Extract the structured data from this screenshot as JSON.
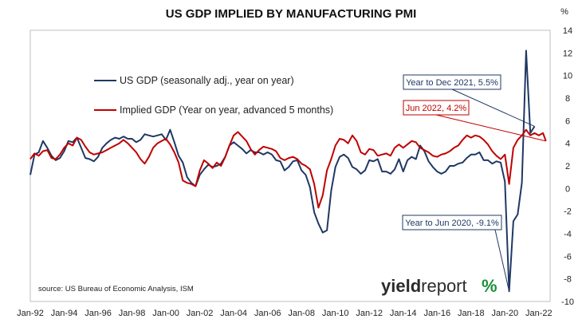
{
  "chart_data": {
    "type": "line",
    "title": "US GDP IMPLIED BY MANUFACTURING PMI",
    "y_unit_label": "%",
    "ylim": [
      -10,
      14
    ],
    "y_ticks": [
      14,
      12,
      10,
      8,
      6,
      4,
      2,
      0,
      -2,
      -4,
      -6,
      -8,
      -10
    ],
    "xlim": [
      "1992-01",
      "2022-09"
    ],
    "x_ticks": [
      "Jan-92",
      "Jan-94",
      "Jan-96",
      "Jan-98",
      "Jan-00",
      "Jan-02",
      "Jan-04",
      "Jan-06",
      "Jan-08",
      "Jan-10",
      "Jan-12",
      "Jan-14",
      "Jan-16",
      "Jan-18",
      "Jan-20",
      "Jan-22"
    ],
    "x_tick_dates": [
      "1992-01",
      "1994-01",
      "1996-01",
      "1998-01",
      "2000-01",
      "2002-01",
      "2004-01",
      "2006-01",
      "2008-01",
      "2010-01",
      "2012-01",
      "2014-01",
      "2016-01",
      "2018-01",
      "2020-01",
      "2022-01"
    ],
    "grid": false,
    "series": [
      {
        "name": "US GDP (seasonally adj., year on year)",
        "color": "#1f3864",
        "points": [
          [
            "1992-01",
            1.2
          ],
          [
            "1992-04",
            3.0
          ],
          [
            "1992-07",
            3.2
          ],
          [
            "1992-10",
            4.2
          ],
          [
            "1993-01",
            3.6
          ],
          [
            "1993-04",
            2.9
          ],
          [
            "1993-07",
            2.5
          ],
          [
            "1993-10",
            2.7
          ],
          [
            "1994-01",
            3.3
          ],
          [
            "1994-04",
            4.2
          ],
          [
            "1994-07",
            4.1
          ],
          [
            "1994-10",
            4.5
          ],
          [
            "1995-01",
            3.6
          ],
          [
            "1995-04",
            2.7
          ],
          [
            "1995-07",
            2.6
          ],
          [
            "1995-10",
            2.4
          ],
          [
            "1996-01",
            2.8
          ],
          [
            "1996-04",
            3.6
          ],
          [
            "1996-07",
            4.0
          ],
          [
            "1996-10",
            4.3
          ],
          [
            "1997-01",
            4.5
          ],
          [
            "1997-04",
            4.4
          ],
          [
            "1997-07",
            4.6
          ],
          [
            "1997-10",
            4.4
          ],
          [
            "1998-01",
            4.4
          ],
          [
            "1998-04",
            4.1
          ],
          [
            "1998-07",
            4.3
          ],
          [
            "1998-10",
            4.8
          ],
          [
            "1999-01",
            4.7
          ],
          [
            "1999-04",
            4.6
          ],
          [
            "1999-07",
            4.7
          ],
          [
            "1999-10",
            4.8
          ],
          [
            "2000-01",
            4.3
          ],
          [
            "2000-04",
            5.2
          ],
          [
            "2000-07",
            4.1
          ],
          [
            "2000-10",
            2.9
          ],
          [
            "2001-01",
            2.3
          ],
          [
            "2001-04",
            1.0
          ],
          [
            "2001-07",
            0.5
          ],
          [
            "2001-10",
            0.2
          ],
          [
            "2002-01",
            1.2
          ],
          [
            "2002-04",
            1.7
          ],
          [
            "2002-07",
            2.1
          ],
          [
            "2002-10",
            1.9
          ],
          [
            "2003-01",
            2.0
          ],
          [
            "2003-04",
            2.2
          ],
          [
            "2003-07",
            2.8
          ],
          [
            "2003-10",
            3.8
          ],
          [
            "2004-01",
            4.1
          ],
          [
            "2004-04",
            3.8
          ],
          [
            "2004-07",
            3.5
          ],
          [
            "2004-10",
            3.1
          ],
          [
            "2005-01",
            3.4
          ],
          [
            "2005-04",
            3.2
          ],
          [
            "2005-07",
            3.2
          ],
          [
            "2005-10",
            3.0
          ],
          [
            "2006-01",
            3.2
          ],
          [
            "2006-04",
            3.0
          ],
          [
            "2006-07",
            2.5
          ],
          [
            "2006-10",
            2.4
          ],
          [
            "2007-01",
            1.6
          ],
          [
            "2007-04",
            1.9
          ],
          [
            "2007-07",
            2.4
          ],
          [
            "2007-10",
            2.5
          ],
          [
            "2008-01",
            1.6
          ],
          [
            "2008-04",
            1.2
          ],
          [
            "2008-07",
            0.1
          ],
          [
            "2008-10",
            -2.1
          ],
          [
            "2009-01",
            -3.1
          ],
          [
            "2009-04",
            -3.9
          ],
          [
            "2009-07",
            -3.7
          ],
          [
            "2009-10",
            -0.2
          ],
          [
            "2010-01",
            1.9
          ],
          [
            "2010-04",
            2.8
          ],
          [
            "2010-07",
            3.0
          ],
          [
            "2010-10",
            2.7
          ],
          [
            "2011-01",
            1.9
          ],
          [
            "2011-04",
            1.7
          ],
          [
            "2011-07",
            1.3
          ],
          [
            "2011-10",
            1.6
          ],
          [
            "2012-01",
            2.5
          ],
          [
            "2012-04",
            2.4
          ],
          [
            "2012-07",
            2.6
          ],
          [
            "2012-10",
            1.5
          ],
          [
            "2013-01",
            1.5
          ],
          [
            "2013-04",
            1.3
          ],
          [
            "2013-07",
            1.7
          ],
          [
            "2013-10",
            2.6
          ],
          [
            "2014-01",
            1.5
          ],
          [
            "2014-04",
            2.5
          ],
          [
            "2014-07",
            2.8
          ],
          [
            "2014-10",
            2.6
          ],
          [
            "2015-01",
            3.8
          ],
          [
            "2015-04",
            3.3
          ],
          [
            "2015-07",
            2.4
          ],
          [
            "2015-10",
            1.9
          ],
          [
            "2016-01",
            1.5
          ],
          [
            "2016-04",
            1.3
          ],
          [
            "2016-07",
            1.5
          ],
          [
            "2016-10",
            2.0
          ],
          [
            "2017-01",
            2.0
          ],
          [
            "2017-04",
            2.2
          ],
          [
            "2017-07",
            2.3
          ],
          [
            "2017-10",
            2.7
          ],
          [
            "2018-01",
            3.0
          ],
          [
            "2018-04",
            3.0
          ],
          [
            "2018-07",
            3.2
          ],
          [
            "2018-10",
            2.5
          ],
          [
            "2019-01",
            2.5
          ],
          [
            "2019-04",
            2.2
          ],
          [
            "2019-07",
            2.4
          ],
          [
            "2019-10",
            2.3
          ],
          [
            "2020-01",
            0.6
          ],
          [
            "2020-04",
            -9.1
          ],
          [
            "2020-07",
            -2.9
          ],
          [
            "2020-10",
            -2.3
          ],
          [
            "2021-01",
            0.5
          ],
          [
            "2021-04",
            12.2
          ],
          [
            "2021-07",
            4.9
          ],
          [
            "2021-10",
            5.5
          ]
        ]
      },
      {
        "name": "Implied GDP (Year on year, advanced 5 months)",
        "color": "#c00000",
        "points": [
          [
            "1992-01",
            2.6
          ],
          [
            "1992-04",
            3.1
          ],
          [
            "1992-07",
            2.9
          ],
          [
            "1992-10",
            3.3
          ],
          [
            "1993-01",
            3.4
          ],
          [
            "1993-04",
            2.7
          ],
          [
            "1993-07",
            2.6
          ],
          [
            "1993-10",
            3.0
          ],
          [
            "1994-01",
            3.6
          ],
          [
            "1994-04",
            4.0
          ],
          [
            "1994-07",
            3.8
          ],
          [
            "1994-10",
            4.5
          ],
          [
            "1995-01",
            4.3
          ],
          [
            "1995-04",
            3.7
          ],
          [
            "1995-07",
            3.2
          ],
          [
            "1995-10",
            3.0
          ],
          [
            "1996-01",
            3.1
          ],
          [
            "1996-04",
            3.2
          ],
          [
            "1996-07",
            3.4
          ],
          [
            "1996-10",
            3.6
          ],
          [
            "1997-01",
            3.8
          ],
          [
            "1997-04",
            4.0
          ],
          [
            "1997-07",
            4.3
          ],
          [
            "1997-10",
            4.0
          ],
          [
            "1998-01",
            3.6
          ],
          [
            "1998-04",
            3.2
          ],
          [
            "1998-07",
            2.6
          ],
          [
            "1998-10",
            2.2
          ],
          [
            "1999-01",
            2.8
          ],
          [
            "1999-04",
            3.6
          ],
          [
            "1999-07",
            4.0
          ],
          [
            "1999-10",
            4.2
          ],
          [
            "2000-01",
            4.4
          ],
          [
            "2000-04",
            3.9
          ],
          [
            "2000-07",
            3.2
          ],
          [
            "2000-10",
            2.3
          ],
          [
            "2001-01",
            0.7
          ],
          [
            "2001-04",
            0.5
          ],
          [
            "2001-07",
            0.4
          ],
          [
            "2001-10",
            0.2
          ],
          [
            "2002-01",
            1.6
          ],
          [
            "2002-04",
            2.5
          ],
          [
            "2002-07",
            2.2
          ],
          [
            "2002-10",
            1.8
          ],
          [
            "2003-01",
            2.3
          ],
          [
            "2003-04",
            2.0
          ],
          [
            "2003-07",
            2.8
          ],
          [
            "2003-10",
            3.8
          ],
          [
            "2004-01",
            4.7
          ],
          [
            "2004-04",
            5.0
          ],
          [
            "2004-07",
            4.6
          ],
          [
            "2004-10",
            4.2
          ],
          [
            "2005-01",
            3.5
          ],
          [
            "2005-04",
            3.0
          ],
          [
            "2005-07",
            3.4
          ],
          [
            "2005-10",
            3.7
          ],
          [
            "2006-01",
            3.6
          ],
          [
            "2006-04",
            3.5
          ],
          [
            "2006-07",
            3.3
          ],
          [
            "2006-10",
            2.7
          ],
          [
            "2007-01",
            2.5
          ],
          [
            "2007-04",
            2.7
          ],
          [
            "2007-07",
            2.8
          ],
          [
            "2007-10",
            2.6
          ],
          [
            "2008-01",
            2.2
          ],
          [
            "2008-04",
            2.0
          ],
          [
            "2008-07",
            1.7
          ],
          [
            "2008-10",
            0.4
          ],
          [
            "2009-01",
            -1.7
          ],
          [
            "2009-04",
            -0.6
          ],
          [
            "2009-07",
            1.6
          ],
          [
            "2009-10",
            2.6
          ],
          [
            "2010-01",
            3.8
          ],
          [
            "2010-04",
            4.4
          ],
          [
            "2010-07",
            4.3
          ],
          [
            "2010-10",
            4.0
          ],
          [
            "2011-01",
            4.7
          ],
          [
            "2011-04",
            4.2
          ],
          [
            "2011-07",
            3.2
          ],
          [
            "2011-10",
            3.0
          ],
          [
            "2012-01",
            3.5
          ],
          [
            "2012-04",
            3.4
          ],
          [
            "2012-07",
            2.9
          ],
          [
            "2012-10",
            3.0
          ],
          [
            "2013-01",
            3.1
          ],
          [
            "2013-04",
            2.9
          ],
          [
            "2013-07",
            3.6
          ],
          [
            "2013-10",
            3.9
          ],
          [
            "2014-01",
            3.6
          ],
          [
            "2014-04",
            3.9
          ],
          [
            "2014-07",
            4.2
          ],
          [
            "2014-10",
            4.1
          ],
          [
            "2015-01",
            3.6
          ],
          [
            "2015-04",
            3.4
          ],
          [
            "2015-07",
            3.2
          ],
          [
            "2015-10",
            2.9
          ],
          [
            "2016-01",
            2.8
          ],
          [
            "2016-04",
            3.0
          ],
          [
            "2016-07",
            3.1
          ],
          [
            "2016-10",
            3.3
          ],
          [
            "2017-01",
            3.6
          ],
          [
            "2017-04",
            3.8
          ],
          [
            "2017-07",
            4.3
          ],
          [
            "2017-10",
            4.7
          ],
          [
            "2018-01",
            4.5
          ],
          [
            "2018-04",
            4.7
          ],
          [
            "2018-07",
            4.6
          ],
          [
            "2018-10",
            4.3
          ],
          [
            "2019-01",
            3.9
          ],
          [
            "2019-04",
            3.3
          ],
          [
            "2019-07",
            2.9
          ],
          [
            "2019-10",
            2.6
          ],
          [
            "2020-01",
            3.0
          ],
          [
            "2020-04",
            0.4
          ],
          [
            "2020-07",
            3.6
          ],
          [
            "2020-10",
            4.3
          ],
          [
            "2021-01",
            4.7
          ],
          [
            "2021-04",
            5.2
          ],
          [
            "2021-07",
            4.7
          ],
          [
            "2021-10",
            4.9
          ],
          [
            "2022-01",
            4.7
          ],
          [
            "2022-04",
            4.9
          ],
          [
            "2022-06",
            4.2
          ]
        ]
      }
    ],
    "annotations": [
      {
        "text": "Year to Dec 2021, 5.5%",
        "series": 0,
        "target": [
          "2021-10",
          5.5
        ],
        "color": "#1f3864"
      },
      {
        "text": "Jun 2022, 4.2%",
        "series": 1,
        "target": [
          "2022-06",
          4.2
        ],
        "color": "#c00000"
      },
      {
        "text": "Year to Jun 2020, -9.1%",
        "series": 0,
        "target": [
          "2020-04",
          -9.1
        ],
        "color": "#1f3864"
      }
    ],
    "source_text": "source: US Bureau of Economic Analysis, ISM",
    "brand": {
      "word1": "yield",
      "word2": "report",
      "symbol": "%"
    }
  }
}
